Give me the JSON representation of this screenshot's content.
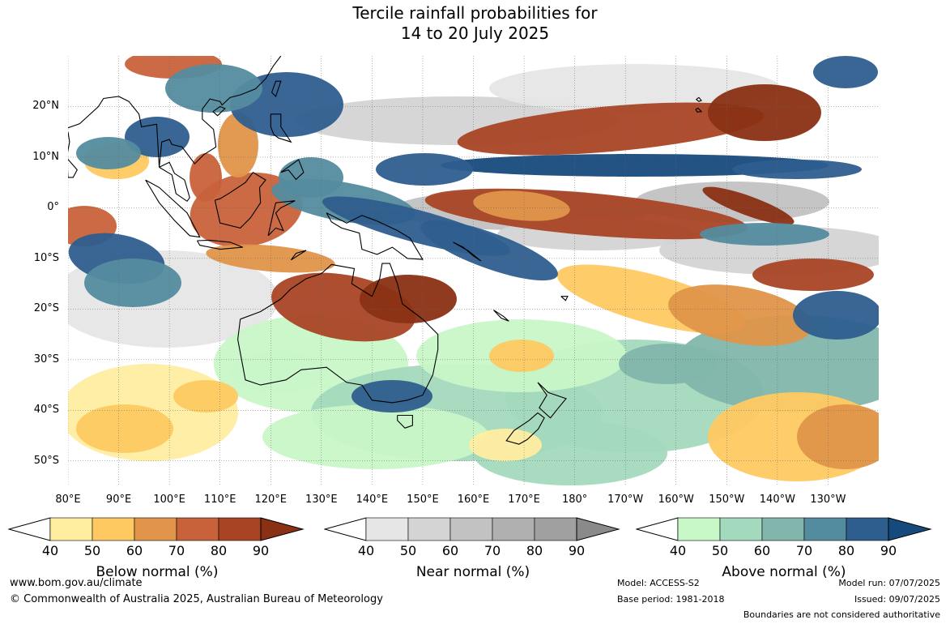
{
  "title": {
    "line1": "Tercile rainfall probabilities for",
    "line2": "14 to 20 July 2025"
  },
  "map": {
    "lat_labels": [
      "20°N",
      "10°N",
      "0°",
      "10°S",
      "20°S",
      "30°S",
      "40°S",
      "50°S"
    ],
    "lon_labels": [
      "80°E",
      "90°E",
      "100°E",
      "110°E",
      "120°E",
      "130°E",
      "140°E",
      "150°E",
      "160°E",
      "170°E",
      "180°",
      "170°W",
      "160°W",
      "150°W",
      "140°W",
      "130°W"
    ],
    "lat_values": [
      20,
      10,
      0,
      -10,
      -20,
      -30,
      -40,
      -50
    ],
    "lon_values": [
      80,
      90,
      100,
      110,
      120,
      130,
      140,
      150,
      160,
      170,
      180,
      190,
      200,
      210,
      220,
      230
    ],
    "lat_range": [
      -55,
      30
    ],
    "lon_range": [
      80,
      240
    ]
  },
  "legends": [
    {
      "label": "Below normal (%)",
      "ticks": [
        "40",
        "50",
        "60",
        "70",
        "80",
        "90"
      ],
      "colors": [
        "#ffeda0",
        "#fec961",
        "#e0954a",
        "#c8623a",
        "#a84424",
        "#8a3014"
      ]
    },
    {
      "label": "Near normal (%)",
      "ticks": [
        "40",
        "50",
        "60",
        "70",
        "80",
        "90"
      ],
      "colors": [
        "#e6e6e6",
        "#d4d4d4",
        "#c2c2c2",
        "#b0b0b0",
        "#a0a0a0",
        "#8a8a8a"
      ]
    },
    {
      "label": "Above normal (%)",
      "ticks": [
        "40",
        "50",
        "60",
        "70",
        "80",
        "90"
      ],
      "colors": [
        "#c8f7c8",
        "#a3d9bd",
        "#82b6ac",
        "#548c9f",
        "#2e5e8e",
        "#174a7c"
      ]
    }
  ],
  "footer": {
    "website": "www.bom.gov.au/climate",
    "copyright": "© Commonwealth of Australia 2025, Australian Bureau of Meteorology",
    "model": "Model: ACCESS-S2",
    "base_period": "Base period: 1981-2018",
    "model_run": "Model run: 07/07/2025",
    "issued": "Issued: 09/07/2025",
    "boundaries_note": "Boundaries are not considered authoritative"
  }
}
